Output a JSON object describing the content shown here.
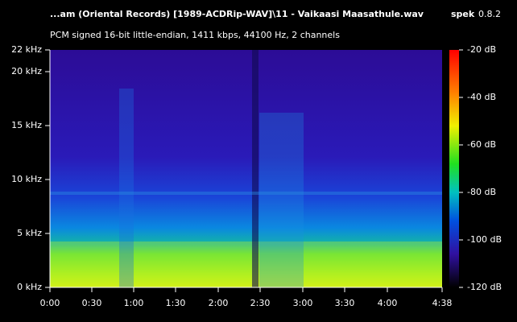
{
  "header": {
    "title": "...am (Oriental Records) [1989-ACDRip-WAV]\\11 - Vaikaasi Maasathule.wav",
    "app": "spek",
    "version": "0.8.2",
    "subtitle": "PCM signed 16-bit little-endian, 1411 kbps, 44100 Hz, 2 channels"
  },
  "frequency_axis": {
    "ticks": [
      "22 kHz",
      "20 kHz",
      "15 kHz",
      "10 kHz",
      "5 kHz",
      "0 kHz"
    ]
  },
  "time_axis": {
    "ticks": [
      "0:00",
      "0:30",
      "1:00",
      "1:30",
      "2:00",
      "2:30",
      "3:00",
      "3:30",
      "4:00",
      "4:38"
    ]
  },
  "color_scale": {
    "ticks": [
      "-20 dB",
      "-40 dB",
      "-60 dB",
      "-80 dB",
      "-100 dB",
      "-120 dB"
    ]
  }
}
